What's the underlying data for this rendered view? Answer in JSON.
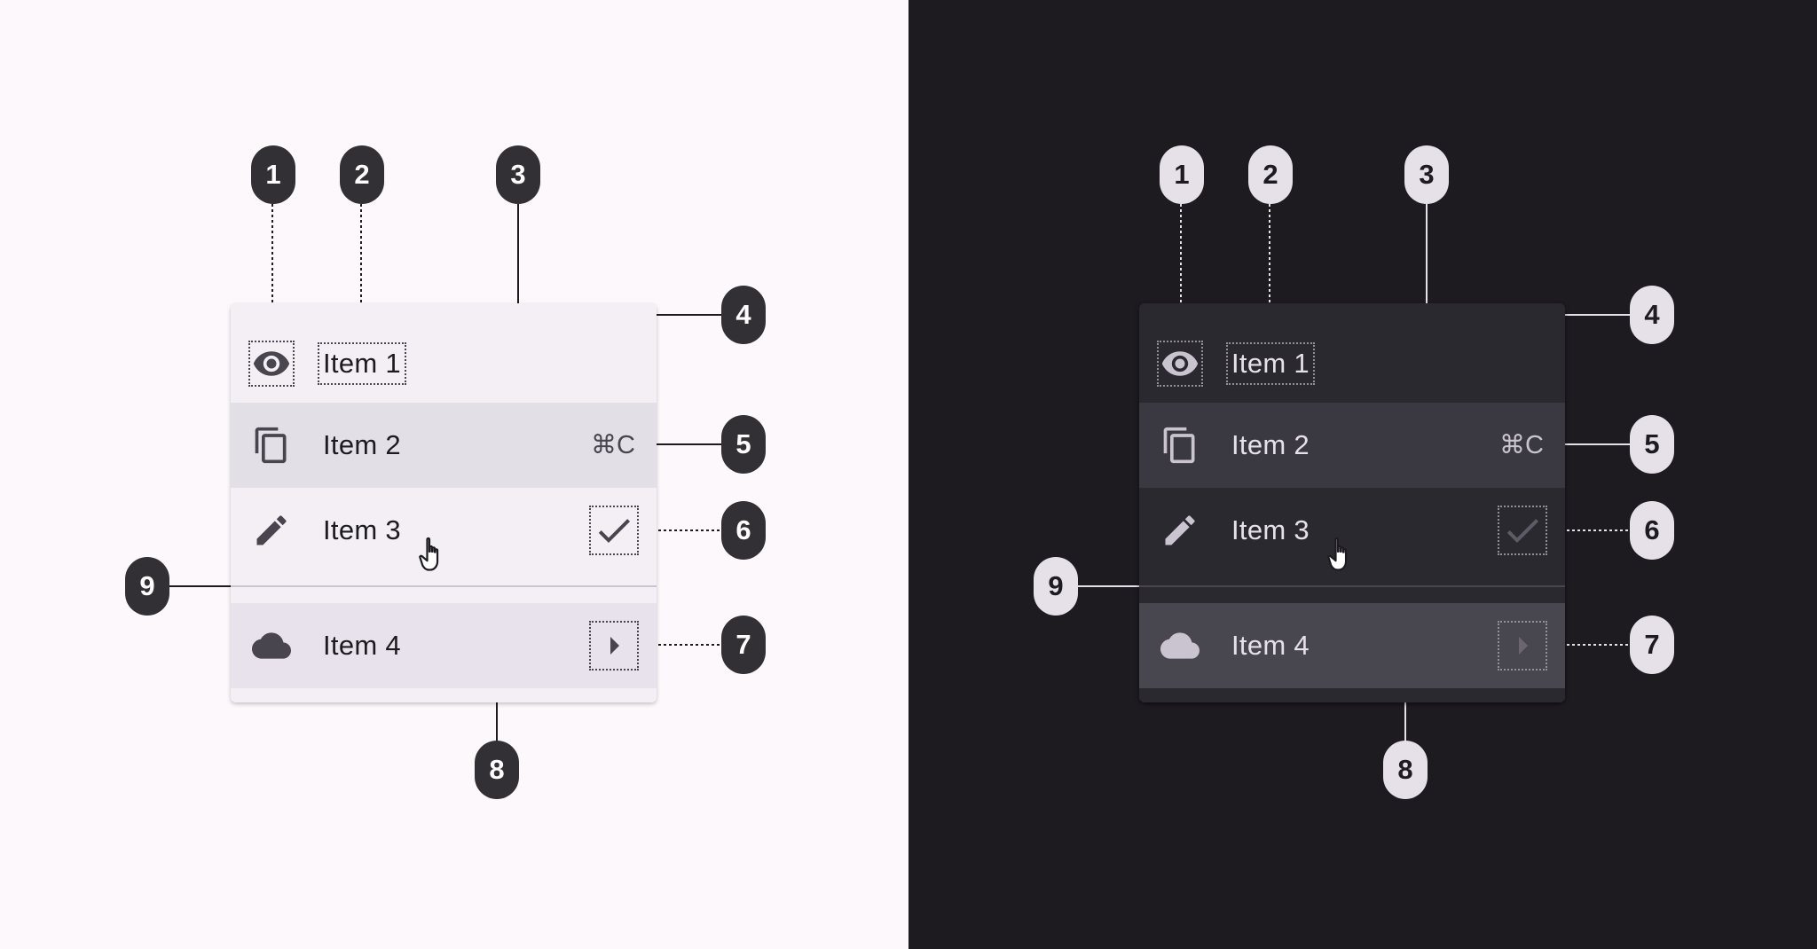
{
  "panels": [
    {
      "theme": "light",
      "colors": {
        "bg": "#fdf8fb",
        "menu": "#f3eff5",
        "text": "#1d1b20",
        "icon": "#49454f",
        "line": "#000000",
        "badge": "#323035"
      },
      "items": [
        {
          "label": "Item 1",
          "icon": "eye-icon"
        },
        {
          "label": "Item 2",
          "icon": "copy-icon",
          "shortcut": "⌘C",
          "state": "hovered"
        },
        {
          "label": "Item 3",
          "icon": "pencil-icon",
          "trailing_icon": "check-icon"
        },
        {
          "label": "Item 4",
          "icon": "cloud-icon",
          "trailing_icon": "arrow-right-icon",
          "state": "selected"
        }
      ],
      "callouts": [
        "1",
        "2",
        "3",
        "4",
        "5",
        "6",
        "7",
        "8",
        "9"
      ]
    },
    {
      "theme": "dark",
      "colors": {
        "bg": "#1d1b20",
        "menu": "#2b2930",
        "text": "#e6e0e9",
        "icon": "#cac4d0",
        "line": "#e6e0e9",
        "badge": "#e6e0e9"
      },
      "items": [
        {
          "label": "Item 1",
          "icon": "eye-icon"
        },
        {
          "label": "Item 2",
          "icon": "copy-icon",
          "shortcut": "⌘C",
          "state": "hovered"
        },
        {
          "label": "Item 3",
          "icon": "pencil-icon",
          "trailing_icon": "check-icon"
        },
        {
          "label": "Item 4",
          "icon": "cloud-icon",
          "trailing_icon": "arrow-right-icon",
          "state": "selected"
        }
      ],
      "callouts": [
        "1",
        "2",
        "3",
        "4",
        "5",
        "6",
        "7",
        "8",
        "9"
      ]
    }
  ]
}
